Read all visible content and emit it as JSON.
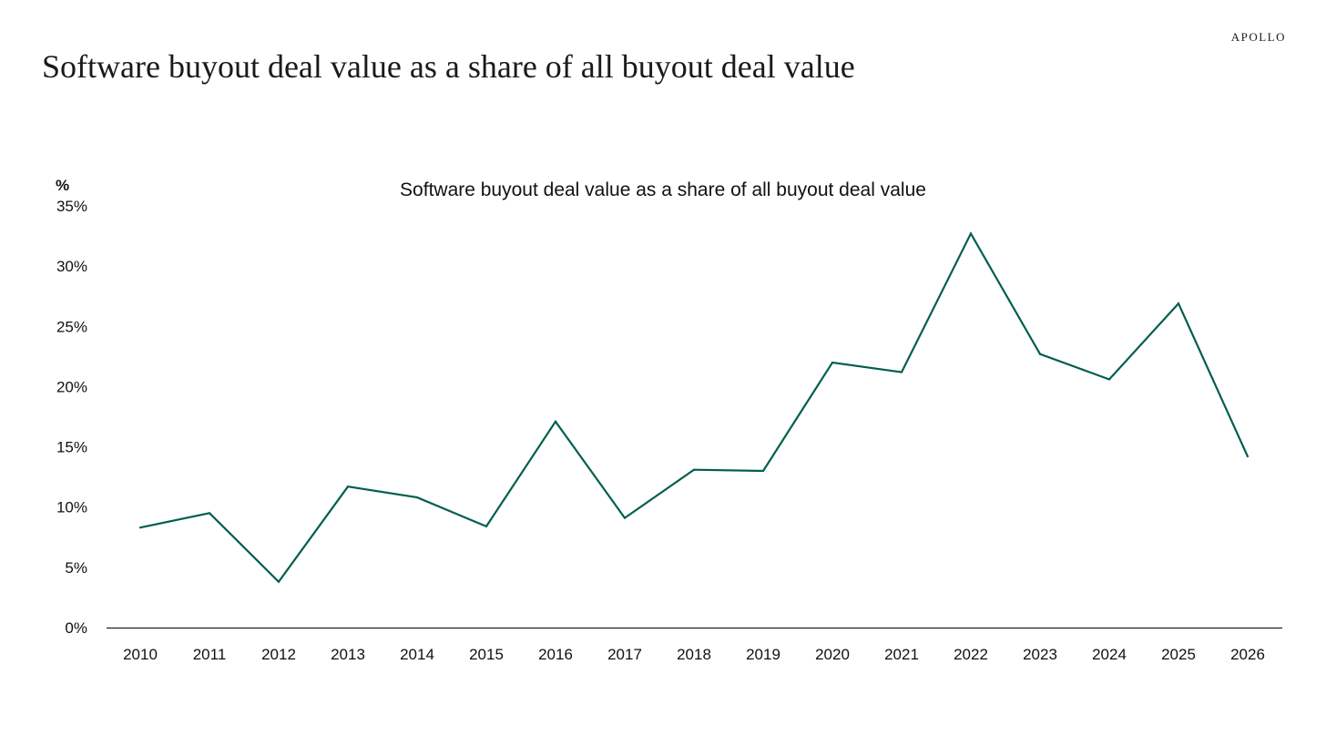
{
  "header": {
    "brand": "APOLLO",
    "title": "Software buyout deal value as a share of all buyout deal value"
  },
  "chart_data": {
    "type": "line",
    "title": "Software buyout deal value as a share of all buyout deal value",
    "ylabel": "%",
    "xlabel": "",
    "ylim": [
      0,
      35
    ],
    "yticks": [
      "0%",
      "5%",
      "10%",
      "15%",
      "20%",
      "25%",
      "30%",
      "35%"
    ],
    "ytick_values": [
      0,
      5,
      10,
      15,
      20,
      25,
      30,
      35
    ],
    "categories": [
      "2010",
      "2011",
      "2012",
      "2013",
      "2014",
      "2015",
      "2016",
      "2017",
      "2018",
      "2019",
      "2020",
      "2021",
      "2022",
      "2023",
      "2024",
      "2025",
      "2026"
    ],
    "series": [
      {
        "values": [
          8.3,
          9.5,
          3.8,
          11.7,
          10.8,
          8.4,
          17.1,
          9.1,
          13.1,
          13.0,
          22.0,
          21.2,
          32.7,
          22.7,
          20.6,
          26.9,
          14.2
        ],
        "color": "#005e50"
      }
    ],
    "grid": false,
    "legend": "none"
  }
}
